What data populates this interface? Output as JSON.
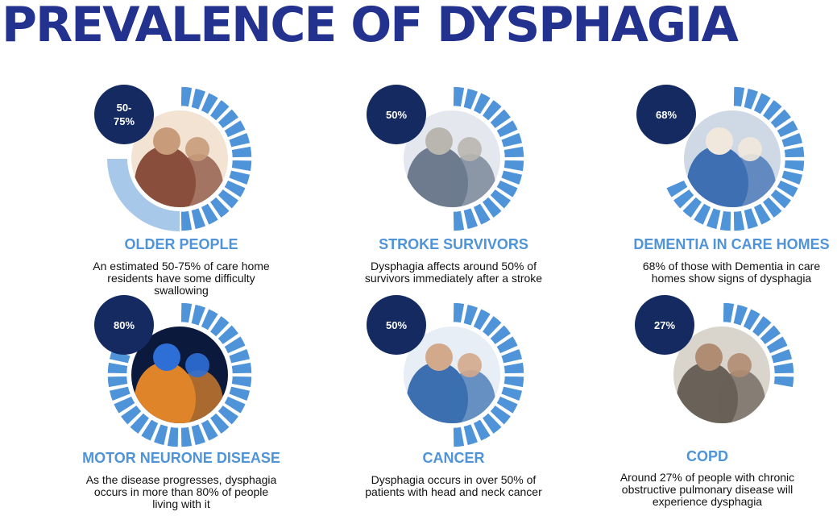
{
  "title": "PREVALENCE OF DYSPHAGIA",
  "colors": {
    "title": "#23318f",
    "segment": "#4f93d8",
    "segment_fill": "#a8c8ea",
    "badge": "#142a60",
    "label": "#4f93d8"
  },
  "cards": [
    {
      "percent_label": "50-\n75%",
      "percent_value": 0.75,
      "label": "OLDER PEOPLE",
      "description": "An estimated 50-75% of care home residents have some difficulty swallowing",
      "photo": "care-worker-reading-with-elderly-woman"
    },
    {
      "percent_label": "50%",
      "percent_value": 0.5,
      "label": "STROKE SURVIVORS",
      "description": "Dysphagia affects around 50% of survivors immediately after a stroke",
      "photo": "nurse-with-elderly-man-drinking"
    },
    {
      "percent_label": "68%",
      "percent_value": 0.68,
      "label": "DEMENTIA IN CARE HOMES",
      "description": "68% of those with Dementia in care homes show signs of dysphagia",
      "photo": "nurse-with-smiling-elderly-woman"
    },
    {
      "percent_label": "80%",
      "percent_value": 0.8,
      "label": "MOTOR NEURONE DISEASE",
      "description": "As the disease progresses, dysphagia occurs in more than 80% of people living with it",
      "photo": "glowing-brain-neurons"
    },
    {
      "percent_label": "50%",
      "percent_value": 0.5,
      "label": "CANCER",
      "description": "Dysphagia occurs in over 50% of patients with head and neck cancer",
      "photo": "patient-in-headscarf-hospital-bed"
    },
    {
      "percent_label": "27%",
      "percent_value": 0.27,
      "label": "COPD",
      "description": "Around 27% of people with chronic obstructive pulmonary disease will experience dysphagia",
      "photo": "elderly-man-using-inhaler"
    }
  ]
}
